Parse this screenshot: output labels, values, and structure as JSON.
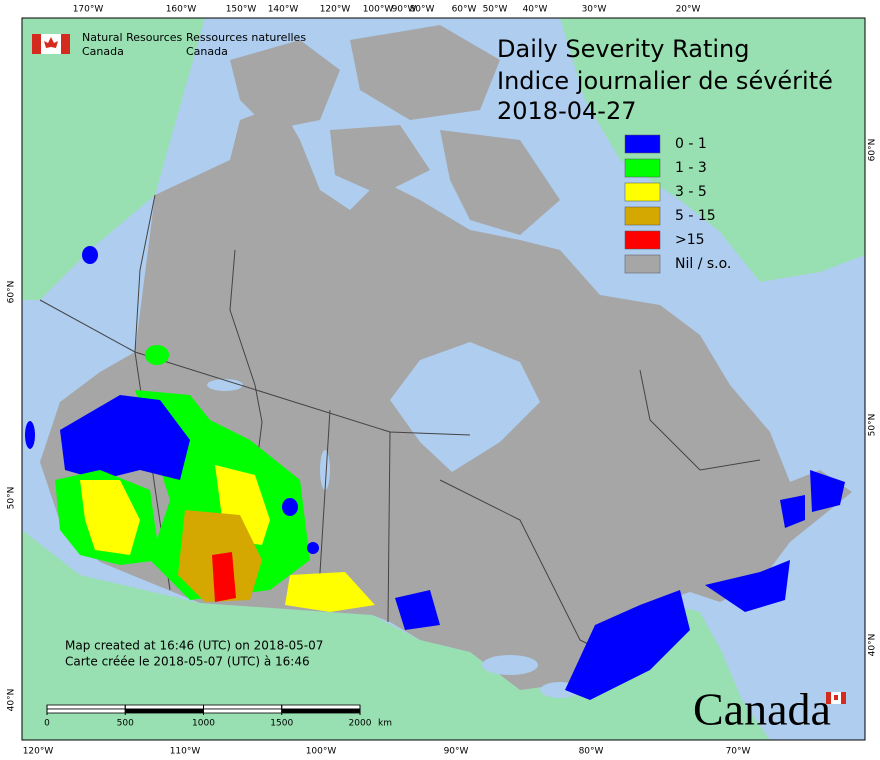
{
  "header": {
    "agency_en": [
      "Natural Resources",
      "Canada"
    ],
    "agency_fr": [
      "Ressources naturelles",
      "Canada"
    ]
  },
  "title": {
    "line1": "Daily Severity Rating",
    "line2": "Indice journalier de sévérité",
    "date": "2018-04-27"
  },
  "legend": [
    {
      "label": "0 - 1",
      "color": "#0000ff"
    },
    {
      "label": "1 - 3",
      "color": "#00ff00"
    },
    {
      "label": "3 - 5",
      "color": "#ffff00"
    },
    {
      "label": "5 - 15",
      "color": "#d4a800"
    },
    {
      "label": ">15",
      "color": "#ff0000"
    },
    {
      "label": "Nil / s.o.",
      "color": "#a6a6a6"
    }
  ],
  "graticule": {
    "top": [
      "170°W",
      "160°W",
      "150°W",
      "140°W",
      "120°W",
      "100°W",
      "90°W",
      "80°W",
      "60°W",
      "50°W",
      "40°W",
      "30°W",
      "20°W"
    ],
    "bottom": [
      "120°W",
      "110°W",
      "100°W",
      "90°W",
      "80°W",
      "70°W"
    ],
    "left": [
      "60°N",
      "50°N",
      "40°N"
    ],
    "right": [
      "60°N",
      "50°N",
      "40°N"
    ]
  },
  "credit": [
    "Map created at 16:46 (UTC) on 2018-05-07",
    "Carte créée le 2018-05-07 (UTC) à 16:46"
  ],
  "scale": {
    "ticks": [
      0,
      500,
      1000,
      1500,
      2000
    ],
    "unit": "km"
  },
  "wordmark": "Canada"
}
